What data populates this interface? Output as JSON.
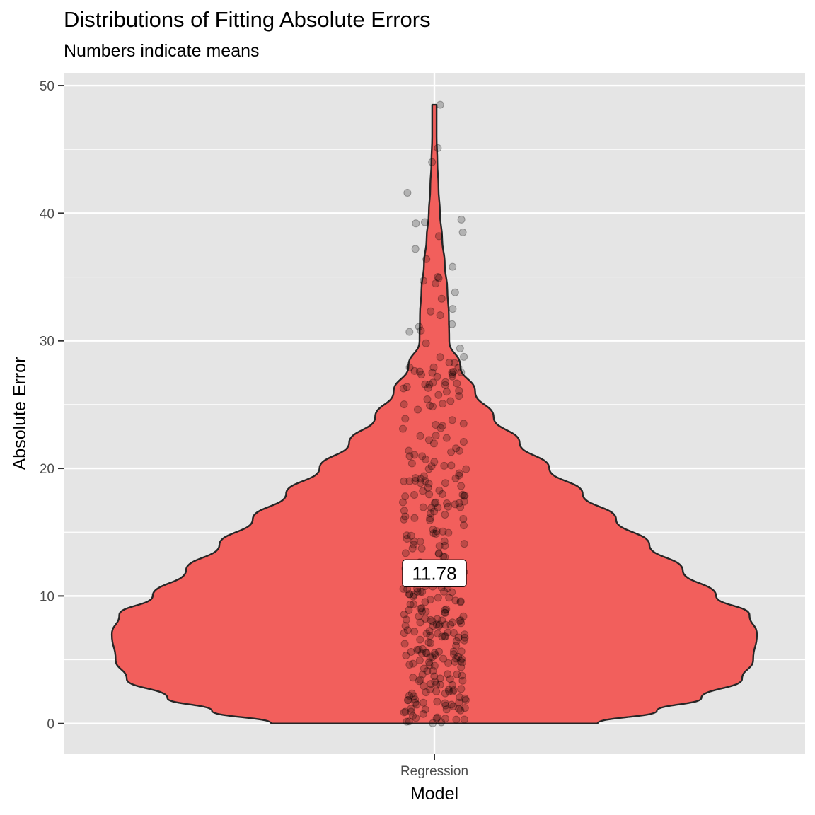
{
  "chart_data": {
    "type": "violin",
    "title": "Distributions of Fitting Absolute Errors",
    "subtitle": "Numbers indicate means",
    "xlabel": "Model",
    "ylabel": "Absolute Error",
    "categories": [
      "Regression"
    ],
    "ylim": [
      -2.4,
      51
    ],
    "yticks": [
      0,
      10,
      20,
      30,
      40,
      50
    ],
    "grid": true,
    "mean": 11.78,
    "mean_label": "11.78",
    "violin_range": [
      0,
      48.5
    ],
    "violin_density_profile": [
      {
        "y": 0,
        "w": 0.44
      },
      {
        "y": 1,
        "w": 0.6
      },
      {
        "y": 2,
        "w": 0.72
      },
      {
        "y": 3.5,
        "w": 0.83
      },
      {
        "y": 5,
        "w": 0.86
      },
      {
        "y": 7,
        "w": 0.87
      },
      {
        "y": 8.5,
        "w": 0.85
      },
      {
        "y": 10,
        "w": 0.76
      },
      {
        "y": 12,
        "w": 0.67
      },
      {
        "y": 14,
        "w": 0.58
      },
      {
        "y": 16,
        "w": 0.49
      },
      {
        "y": 18,
        "w": 0.4
      },
      {
        "y": 20,
        "w": 0.31
      },
      {
        "y": 22,
        "w": 0.23
      },
      {
        "y": 24,
        "w": 0.16
      },
      {
        "y": 26,
        "w": 0.11
      },
      {
        "y": 28,
        "w": 0.07
      },
      {
        "y": 30,
        "w": 0.04
      },
      {
        "y": 32,
        "w": 0.039
      },
      {
        "y": 34,
        "w": 0.035
      },
      {
        "y": 36,
        "w": 0.028
      },
      {
        "y": 38,
        "w": 0.021
      },
      {
        "y": 40,
        "w": 0.015
      },
      {
        "y": 42,
        "w": 0.011
      },
      {
        "y": 44,
        "w": 0.008
      },
      {
        "y": 46,
        "w": 0.006
      },
      {
        "y": 48.5,
        "w": 0.006
      }
    ],
    "outlier_points": [
      48.5,
      45.1,
      44.0,
      41.6,
      39.5,
      39.3,
      39.2,
      38.5,
      38.2,
      37.2,
      36.4,
      35.8,
      35.0,
      34.9,
      34.7,
      34.5,
      33.8,
      33.3,
      32.5,
      32.3,
      32.0,
      31.3,
      31.1,
      30.8,
      30.7,
      29.8,
      29.4
    ],
    "fill_color": "#f25f5c",
    "outline_color": "#262626",
    "panel_color": "#e5e5e5"
  }
}
